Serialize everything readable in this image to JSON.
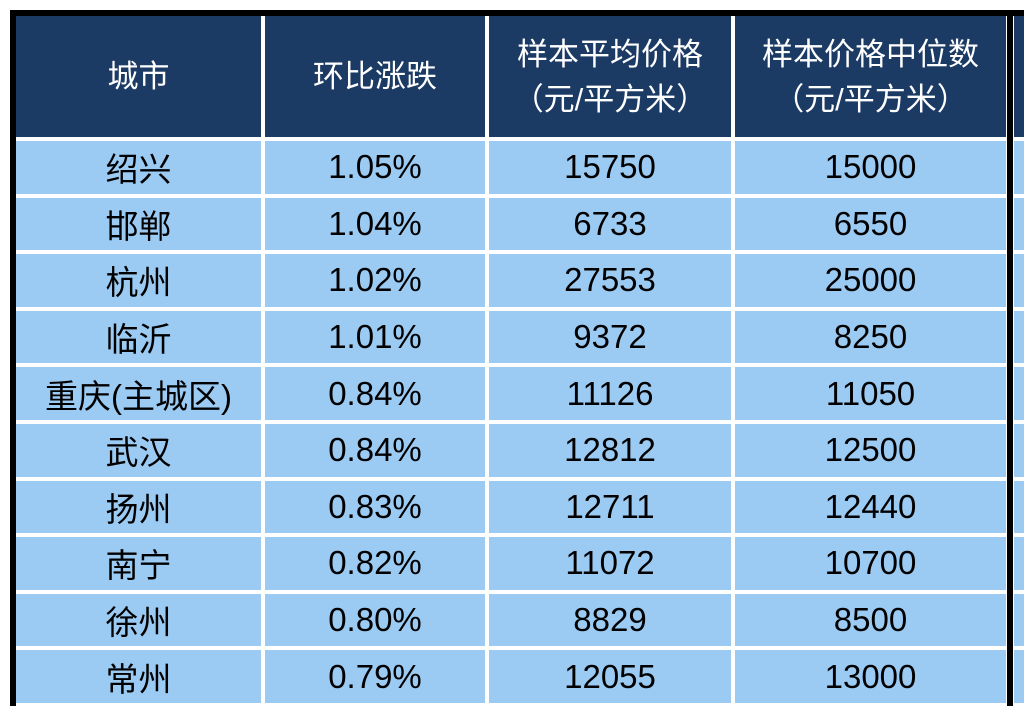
{
  "chart_data": {
    "type": "table",
    "columns": [
      "城市",
      "环比涨跌",
      "样本平均价格（元/平方米）",
      "样本价格中位数（元/平方米）"
    ],
    "rows": [
      [
        "绍兴",
        "1.05%",
        "15750",
        "15000"
      ],
      [
        "邯郸",
        "1.04%",
        "6733",
        "6550"
      ],
      [
        "杭州",
        "1.02%",
        "27553",
        "25000"
      ],
      [
        "临沂",
        "1.01%",
        "9372",
        "8250"
      ],
      [
        "重庆(主城区)",
        "0.84%",
        "11126",
        "11050"
      ],
      [
        "武汉",
        "0.84%",
        "12812",
        "12500"
      ],
      [
        "扬州",
        "0.83%",
        "12711",
        "12440"
      ],
      [
        "南宁",
        "0.82%",
        "11072",
        "10700"
      ],
      [
        "徐州",
        "0.80%",
        "8829",
        "8500"
      ],
      [
        "常州",
        "0.79%",
        "12055",
        "13000"
      ]
    ]
  },
  "header": {
    "col1": {
      "line1": "城市"
    },
    "col2": {
      "line1": "环比涨跌"
    },
    "col3": {
      "line1": "样本平均价格",
      "line2": "（元/平方米）"
    },
    "col4": {
      "line1": "样本价格中位数",
      "line2": "（元/平方米）"
    }
  },
  "colors": {
    "header_bg": "#1B3A64",
    "row_bg": "#9BCAF3",
    "border": "#000000",
    "header_text": "#FFFFFF",
    "row_text": "#000000",
    "page_bg": "#FFFFFF"
  }
}
